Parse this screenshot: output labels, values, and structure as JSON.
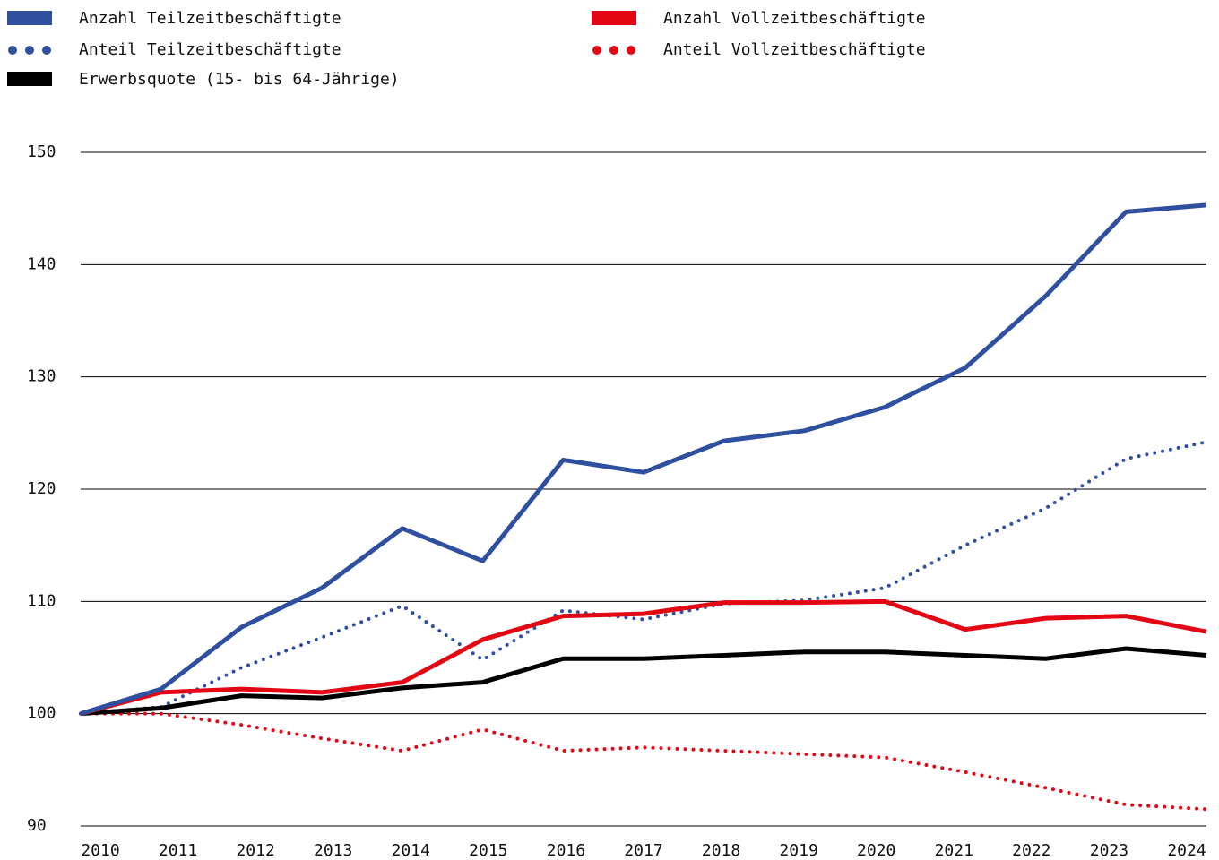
{
  "chart_data": {
    "type": "line",
    "categories": [
      "2010",
      "2011",
      "2012",
      "2013",
      "2014",
      "2015",
      "2016",
      "2017",
      "2018",
      "2019",
      "2020",
      "2021",
      "2022",
      "2023",
      "2024"
    ],
    "series": [
      {
        "name": "Anzahl Teilzeitbeschäftigte",
        "color": "#2f4f9f",
        "style": "solid",
        "values": [
          100,
          102.2,
          107.7,
          111.2,
          116.5,
          113.6,
          122.6,
          121.5,
          124.3,
          125.2,
          127.3,
          130.8,
          137.2,
          144.7,
          145.3
        ]
      },
      {
        "name": "Anteil Teilzeitbeschäftigte",
        "color": "#2f4f9f",
        "style": "dotted",
        "values": [
          100,
          100.6,
          104.1,
          106.8,
          109.6,
          104.8,
          109.2,
          108.4,
          109.8,
          110.1,
          111.2,
          115.0,
          118.3,
          122.7,
          124.2
        ]
      },
      {
        "name": "Anzahl Vollzeitbeschäftigte",
        "color": "#e30613",
        "style": "solid",
        "values": [
          100,
          101.9,
          102.2,
          101.9,
          102.8,
          106.6,
          108.7,
          108.9,
          109.9,
          109.9,
          110.0,
          107.5,
          108.5,
          108.7,
          107.3
        ]
      },
      {
        "name": "Anteil Vollzeitbeschäftigte",
        "color": "#e30613",
        "style": "dotted",
        "values": [
          100,
          100,
          99.0,
          97.8,
          96.7,
          98.6,
          96.7,
          97.0,
          96.7,
          96.4,
          96.1,
          94.8,
          93.4,
          91.9,
          91.5
        ]
      },
      {
        "name": "Erwerbsquote (15- bis 64-Jährige)",
        "color": "#000000",
        "style": "solid",
        "values": [
          100,
          100.5,
          101.6,
          101.4,
          102.3,
          102.8,
          104.9,
          104.9,
          105.2,
          105.5,
          105.5,
          105.2,
          104.9,
          105.8,
          105.2
        ]
      }
    ],
    "ylim": [
      90,
      150
    ],
    "yticks": [
      90,
      100,
      110,
      120,
      130,
      140,
      150
    ],
    "grid": true
  }
}
